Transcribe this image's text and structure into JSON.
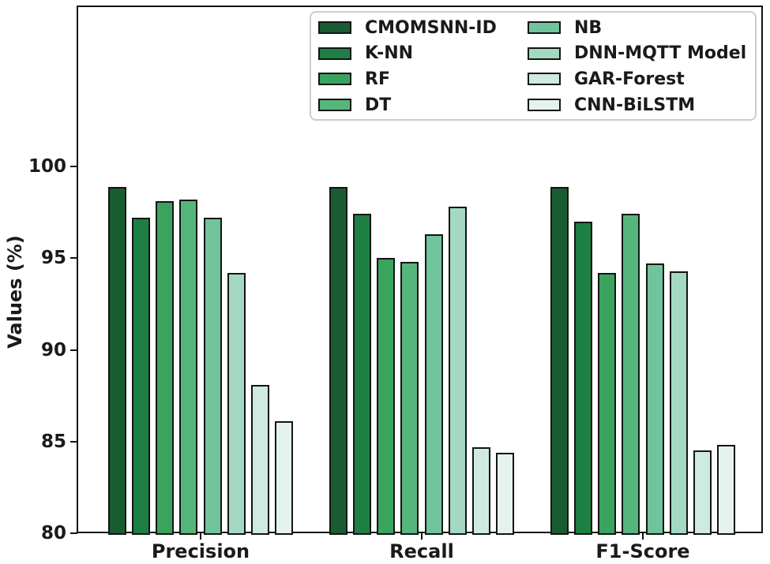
{
  "figure": {
    "background": "#ffffff",
    "text_color": "#1a1a1a",
    "spine_color": "#121212"
  },
  "chart_data": {
    "type": "bar",
    "title": "",
    "categories": [
      "Precision",
      "Recall",
      "F1-Score"
    ],
    "xlabel": "",
    "ylabel": "Values (%)",
    "ylim": [
      80,
      108.7
    ],
    "yticks": [
      80,
      85,
      90,
      95,
      100
    ],
    "grid": false,
    "bar_edge_color": "#141414",
    "legend_position": "upper center inside, 2 columns",
    "series": [
      {
        "name": "CMOMSNN-ID",
        "color": "#1a5c32",
        "values": [
          98.9,
          98.9,
          98.9
        ]
      },
      {
        "name": "K-NN",
        "color": "#1e7f44",
        "values": [
          97.2,
          97.4,
          97.0
        ]
      },
      {
        "name": "RF",
        "color": "#3aa35e",
        "values": [
          98.1,
          95.0,
          94.2
        ]
      },
      {
        "name": "DT",
        "color": "#55b67b",
        "values": [
          98.2,
          94.8,
          97.4
        ]
      },
      {
        "name": "NB",
        "color": "#6fc49c",
        "values": [
          97.2,
          96.3,
          94.7
        ]
      },
      {
        "name": "DNN-MQTT Model",
        "color": "#a3d9c3",
        "values": [
          94.2,
          97.8,
          94.3
        ]
      },
      {
        "name": "GAR-Forest",
        "color": "#cfeade",
        "values": [
          88.1,
          84.7,
          84.5
        ]
      },
      {
        "name": "CNN-BiLSTM",
        "color": "#e4f3ec",
        "values": [
          86.1,
          84.4,
          84.8
        ]
      }
    ]
  }
}
